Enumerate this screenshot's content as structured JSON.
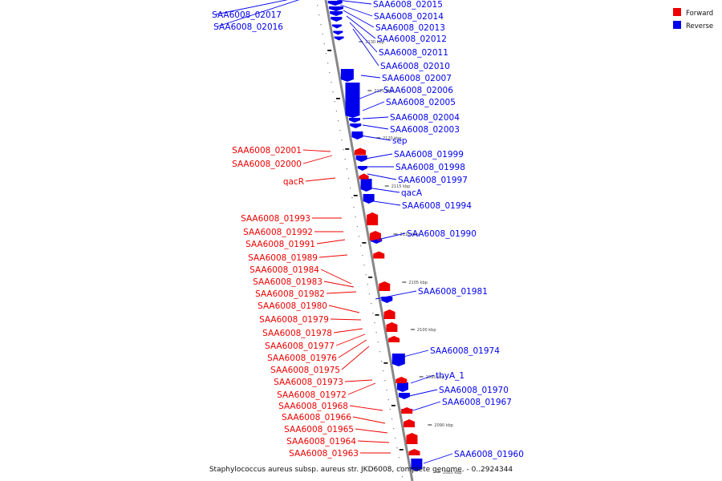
{
  "legend": {
    "forward": {
      "label": "Forward",
      "color": "#ee0000"
    },
    "reverse": {
      "label": "Reverse",
      "color": "#0000ee"
    }
  },
  "caption": "Staphylococcus aureus subsp. aureus str. JKD6008, complete genome. - 0..2924344",
  "ticks": [
    "2130 kbp",
    "2125 kbp",
    "2120 kbp",
    "2115 kbp",
    "2110 kbp",
    "2105 kbp",
    "2100 kbp",
    "2095 kbp",
    "2090 kbp",
    "2085 kbp"
  ],
  "reverse_genes": [
    "SAA6008_02017",
    "SAA6008_02016",
    "SAA6008_02015",
    "SAA6008_02014",
    "SAA6008_02013",
    "SAA6008_02012",
    "SAA6008_02011",
    "SAA6008_02010",
    "SAA6008_02007",
    "SAA6008_02006",
    "SAA6008_02005",
    "SAA6008_02004",
    "SAA6008_02003",
    "sep",
    "SAA6008_01999",
    "SAA6008_01998",
    "SAA6008_01997",
    "qacA",
    "SAA6008_01994",
    "SAA6008_01990",
    "SAA6008_01981",
    "SAA6008_01974",
    "thyA_1",
    "SAA6008_01970",
    "SAA6008_01967",
    "SAA6008_01960"
  ],
  "forward_genes": [
    "SAA6008_02001",
    "SAA6008_02000",
    "qacR",
    "SAA6008_01993",
    "SAA6008_01992",
    "SAA6008_01991",
    "SAA6008_01989",
    "SAA6008_01984",
    "SAA6008_01983",
    "SAA6008_01982",
    "SAA6008_01980",
    "SAA6008_01979",
    "SAA6008_01978",
    "SAA6008_01977",
    "SAA6008_01976",
    "SAA6008_01975",
    "SAA6008_01973",
    "SAA6008_01972",
    "SAA6008_01968",
    "SAA6008_01966",
    "SAA6008_01965",
    "SAA6008_01964",
    "SAA6008_01963"
  ]
}
